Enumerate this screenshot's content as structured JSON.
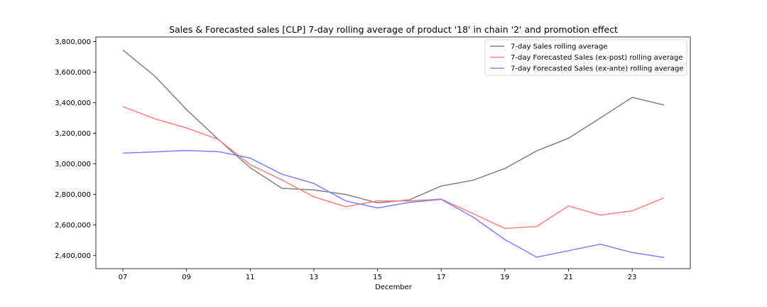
{
  "chart_data": {
    "type": "line",
    "title": "Sales & Forecasted sales [CLP] 7-day rolling average of product '18' in chain '2' and promotion effect",
    "xlabel": "December",
    "ylabel": "",
    "x": [
      "07",
      "08",
      "09",
      "10",
      "11",
      "12",
      "13",
      "14",
      "15",
      "16",
      "17",
      "18",
      "19",
      "20",
      "21",
      "22",
      "23",
      "24"
    ],
    "xticks": [
      "07",
      "09",
      "11",
      "13",
      "15",
      "17",
      "19",
      "21",
      "23"
    ],
    "ylim": [
      2315000,
      3830000
    ],
    "yticks": [
      "2,400,000",
      "2,600,000",
      "2,800,000",
      "3,000,000",
      "3,200,000",
      "3,400,000",
      "3,600,000",
      "3,800,000"
    ],
    "yticks_values": [
      2400000,
      2600000,
      2800000,
      3000000,
      3200000,
      3400000,
      3600000,
      3800000
    ],
    "grid": false,
    "legend_position": "top-right",
    "series": [
      {
        "name": "7-day Sales rolling average",
        "color": "#808080",
        "values": [
          3745000,
          3575000,
          3355000,
          3160000,
          2975000,
          2840000,
          2830000,
          2800000,
          2745000,
          2765000,
          2855000,
          2893000,
          2970000,
          3085000,
          3168000,
          3300000,
          3435000,
          3385000
        ]
      },
      {
        "name": "7-day Forecasted Sales (ex-post) rolling average",
        "color": "#ff7f7f",
        "values": [
          3375000,
          3295000,
          3235000,
          3160000,
          2995000,
          2895000,
          2785000,
          2720000,
          2758000,
          2758000,
          2770000,
          2675000,
          2578000,
          2590000,
          2725000,
          2665000,
          2693000,
          2778000
        ]
      },
      {
        "name": "7-day Forecasted Sales (ex-ante) rolling average",
        "color": "#7f7fff",
        "values": [
          3070000,
          3078000,
          3088000,
          3080000,
          3038000,
          2932000,
          2872000,
          2758000,
          2712000,
          2748000,
          2768000,
          2652000,
          2505000,
          2390000,
          2432000,
          2475000,
          2420000,
          2388000
        ]
      }
    ]
  }
}
